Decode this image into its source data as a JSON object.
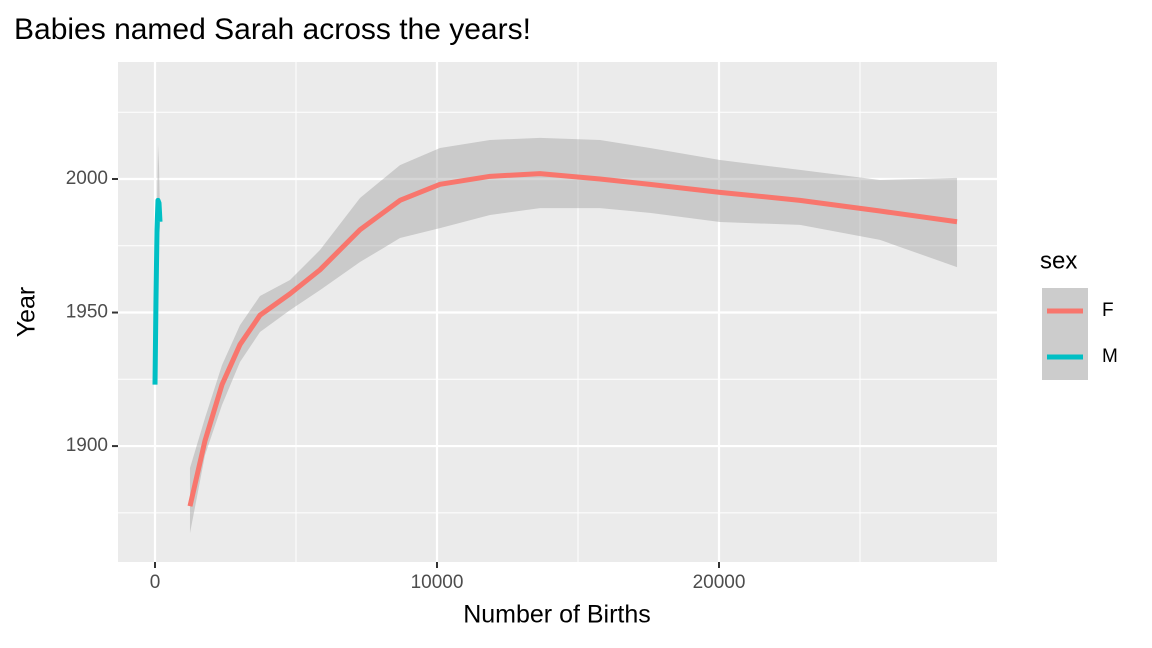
{
  "chart_data": {
    "type": "line",
    "title": "Babies named Sarah across the years!",
    "x_label": "Number of Births",
    "y_label": "Year",
    "legend_title": "sex",
    "legend_position": "right",
    "grid": true,
    "xlim": [
      -1312,
      29858
    ],
    "ylim": [
      1856.6,
      2043.8
    ],
    "xticks": [
      0,
      10000,
      20000
    ],
    "yticks": [
      1900,
      1950,
      2000
    ],
    "x_minor_ticks": [
      5000,
      15000,
      25000
    ],
    "y_minor_ticks": [
      1875,
      1925,
      1975,
      2025
    ],
    "series": [
      {
        "name": "F",
        "color": "#F8766D",
        "x": [
          1241,
          1773,
          2376,
          3014,
          3723,
          4787,
          5851,
          7270,
          8688,
          10106,
          11879,
          13652,
          15780,
          17553,
          20035,
          22872,
          25709,
          28440
        ],
        "values": [
          1877.5,
          1902,
          1923,
          1938,
          1949,
          1957,
          1966,
          1981,
          1992,
          1998,
          2001,
          2002,
          2000,
          1998,
          1995,
          1992,
          1988,
          1984
        ],
        "band_low": [
          1867.4,
          1896.6,
          1915.4,
          1931.5,
          1942.7,
          1950.9,
          1958.4,
          1968.9,
          1977.9,
          1981.6,
          1986.5,
          1989.1,
          1989.1,
          1987.3,
          1983.9,
          1982.8,
          1977.2,
          1967.0
        ],
        "band_high": [
          1891.8,
          1910.5,
          1930.3,
          1945.3,
          1956.2,
          1962.2,
          1973.4,
          1992.9,
          2005.2,
          2011.6,
          2014.6,
          2015.4,
          2014.6,
          2011.6,
          2007.1,
          2003.4,
          1999.6,
          2000.4
        ]
      },
      {
        "name": "M",
        "color": "#00BFC4",
        "x": [
          0,
          35,
          71,
          106,
          142,
          177
        ],
        "values": [
          1923,
          1954.9,
          1981,
          1992,
          1991,
          1984
        ],
        "band_low": [
          1921,
          1950,
          1975,
          1985,
          1984,
          1980
        ],
        "band_high": [
          1925,
          1960,
          1990,
          2013,
          2005,
          1988
        ]
      }
    ]
  }
}
